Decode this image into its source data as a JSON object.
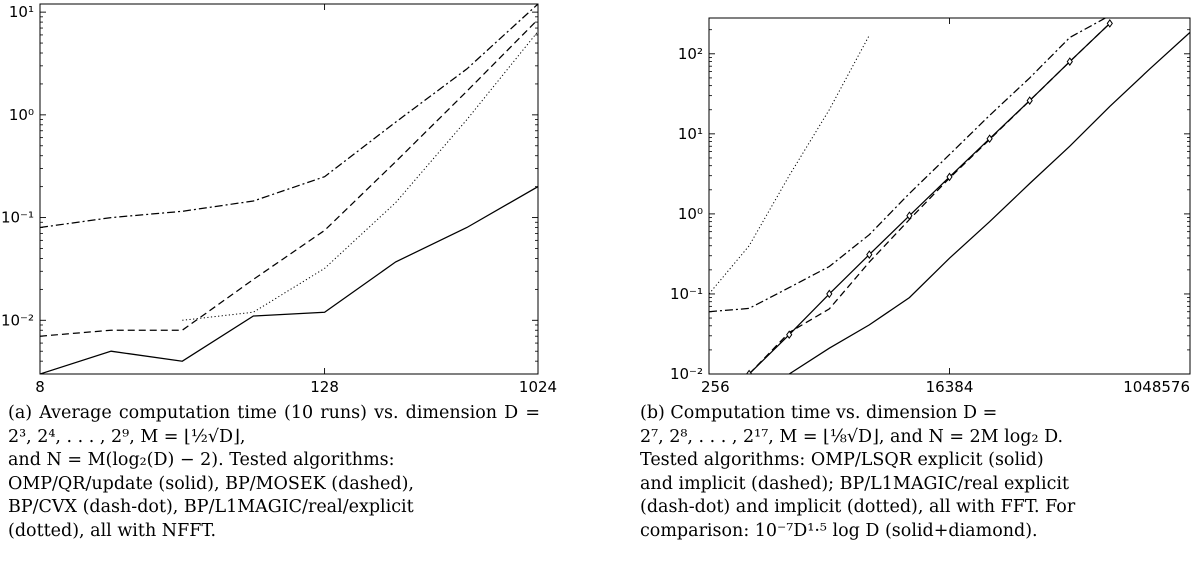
{
  "panels": [
    {
      "id": "a",
      "caption": [
        "(a) Average computation time (10 runs) vs. dimension D = 2³, 2⁴, . . . , 2⁹, M = ⌊½√D⌋,",
        "and N = M(log₂(D) − 2). Tested algorithms:",
        "OMP/QR/update (solid), BP/MOSEK (dashed),",
        "BP/CVX (dash-dot), BP/L1MAGIC/real/explicit",
        "(dotted), all with NFFT."
      ]
    },
    {
      "id": "b",
      "caption": [
        "(b) Computation time vs. dimension D =",
        "2⁷, 2⁸, . . . , 2¹⁷, M = ⌊⅛√D⌋, and N = 2M log₂ D.",
        "Tested algorithms: OMP/LSQR explicit (solid)",
        "and implicit (dashed); BP/L1MAGIC/real explicit",
        "(dash-dot) and implicit (dotted), all with FFT. For",
        "comparison: 10⁻⁷D¹·⁵ log D (solid+diamond)."
      ]
    }
  ],
  "chart_data": [
    {
      "type": "line",
      "xscale": "log2",
      "yscale": "log10",
      "xlim": [
        8,
        1024
      ],
      "ylim": [
        0.003,
        12
      ],
      "xticks": [
        8,
        128,
        1024
      ],
      "xtick_labels": [
        "8",
        "128",
        "1024"
      ],
      "yticks": [
        0.01,
        0.1,
        1,
        10
      ],
      "ytick_labels": [
        "10⁻²",
        "10⁻¹",
        "10⁰",
        "10¹"
      ],
      "x": [
        8,
        16,
        32,
        64,
        128,
        256,
        512,
        1024
      ],
      "series": [
        {
          "style": "solid",
          "values": [
            0.003,
            0.005,
            0.004,
            0.011,
            0.012,
            0.037,
            0.08,
            0.2
          ]
        },
        {
          "style": "dashed",
          "values": [
            0.007,
            0.008,
            0.008,
            0.025,
            0.075,
            0.35,
            1.7,
            8.5
          ]
        },
        {
          "style": "dash-dot",
          "values": [
            0.08,
            0.1,
            0.115,
            0.145,
            0.25,
            0.85,
            2.8,
            12
          ]
        },
        {
          "style": "dotted",
          "values": [
            null,
            null,
            0.01,
            0.012,
            0.032,
            0.14,
            0.9,
            6.5
          ]
        }
      ]
    },
    {
      "type": "line",
      "xscale": "log2",
      "yscale": "log10",
      "xlim": [
        256,
        1048576
      ],
      "ylim": [
        0.01,
        280
      ],
      "xticks": [
        256,
        16384,
        1048576
      ],
      "xtick_labels": [
        "256",
        "16384",
        "1048576"
      ],
      "yticks": [
        0.01,
        0.1,
        1,
        10,
        100
      ],
      "ytick_labels": [
        "10⁻²",
        "10⁻¹",
        "10⁰",
        "10¹",
        "10²"
      ],
      "x": [
        256,
        512,
        1024,
        2048,
        4096,
        8192,
        16384,
        32768,
        65536,
        131072,
        262144,
        524288,
        1048576
      ],
      "series": [
        {
          "style": "solid",
          "values": [
            null,
            null,
            0.01,
            0.021,
            0.041,
            0.09,
            0.28,
            0.8,
            2.4,
            7,
            22,
            65,
            185
          ]
        },
        {
          "style": "dashed",
          "values": [
            null,
            0.01,
            0.033,
            0.065,
            0.25,
            0.85,
            2.8,
            8.5,
            26,
            80,
            240,
            null,
            null
          ]
        },
        {
          "style": "dash-dot",
          "values": [
            0.06,
            0.066,
            0.12,
            0.22,
            0.55,
            1.8,
            5.5,
            17,
            50,
            160,
            300,
            null,
            null
          ]
        },
        {
          "style": "dotted",
          "values": [
            0.1,
            0.4,
            3,
            20,
            170,
            null,
            null,
            null,
            null,
            null,
            null,
            null,
            null
          ]
        },
        {
          "style": "solid+diamond",
          "values": [
            null,
            0.01,
            0.031,
            0.1,
            0.31,
            0.95,
            2.9,
            8.7,
            26,
            80,
            240,
            null,
            null
          ]
        }
      ]
    }
  ]
}
